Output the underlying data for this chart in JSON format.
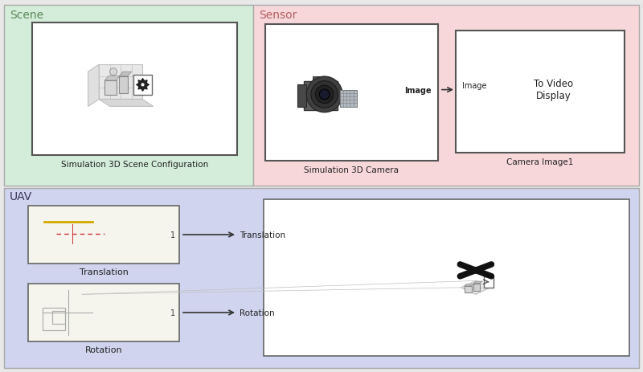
{
  "fig_width": 8.0,
  "fig_height": 4.64,
  "bg_color": "#e8e8e8",
  "scene_bg": "#d4edda",
  "sensor_bg": "#f8d7da",
  "uav_bg": "#d0d4ee",
  "scene_label": "Scene",
  "sensor_label": "Sensor",
  "uav_label": "UAV",
  "label_color": "#5a8a5a",
  "sensor_label_color": "#b06060",
  "uav_label_color": "#333355",
  "sim3d_scene_label": "Simulation 3D Scene Configuration",
  "sim3d_camera_label": "Simulation 3D Camera",
  "camera_image1_label": "Camera Image1",
  "translation_label": "Translation",
  "rotation_label": "Rotation",
  "arrow_color": "#444444"
}
